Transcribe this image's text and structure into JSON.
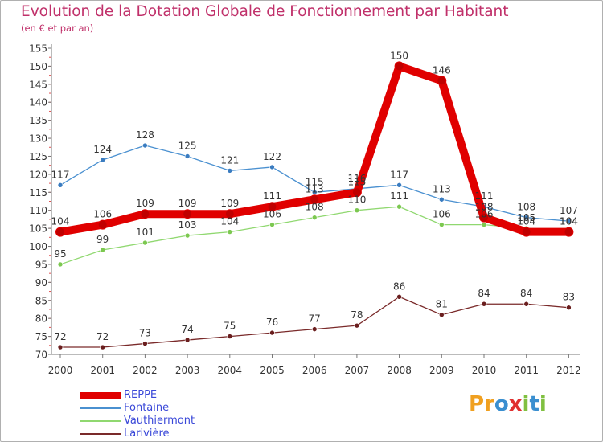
{
  "title": "Evolution de la Dotation Globale de Fonctionnement par Habitant",
  "subtitle": "(en € et par an)",
  "logo": {
    "text": "Proxiti",
    "letters": [
      {
        "ch": "P",
        "color": "#f0a020"
      },
      {
        "ch": "r",
        "color": "#f0a020"
      },
      {
        "ch": "o",
        "color": "#3a8fd0"
      },
      {
        "ch": "x",
        "color": "#e03030"
      },
      {
        "ch": "i",
        "color": "#80c040"
      },
      {
        "ch": "t",
        "color": "#3a8fd0"
      },
      {
        "ch": "i",
        "color": "#80c040"
      }
    ]
  },
  "chart_data": {
    "type": "line",
    "title": "Evolution de la Dotation Globale de Fonctionnement par Habitant",
    "subtitle": "(en € et par an)",
    "x": [
      "2000",
      "2001",
      "2002",
      "2003",
      "2004",
      "2005",
      "2006",
      "2007",
      "2008",
      "2009",
      "2010",
      "2011",
      "2012"
    ],
    "ylim": [
      70,
      155
    ],
    "yticks": [
      70,
      75,
      80,
      85,
      90,
      95,
      100,
      105,
      110,
      115,
      120,
      125,
      130,
      135,
      140,
      145,
      150,
      155
    ],
    "grid": false,
    "legend_position": "bottom-left",
    "series": [
      {
        "name": "REPPE",
        "color": "#e00000",
        "marker_color": "#c00000",
        "values": [
          104,
          106,
          109,
          109,
          109,
          111,
          113,
          115,
          150,
          146,
          108,
          104,
          104
        ]
      },
      {
        "name": "Fontaine",
        "color": "#4a90d0",
        "marker_color": "#3a7cc0",
        "values": [
          117,
          124,
          128,
          125,
          121,
          122,
          115,
          116,
          117,
          113,
          111,
          108,
          107
        ]
      },
      {
        "name": "Vauthiermont",
        "color": "#90d870",
        "marker_color": "#7cc850",
        "values": [
          95,
          99,
          101,
          103,
          104,
          106,
          108,
          110,
          111,
          106,
          106,
          105,
          104
        ]
      },
      {
        "name": "Larivière",
        "color": "#7a2a2a",
        "marker_color": "#6a1e1e",
        "values": [
          72,
          72,
          73,
          74,
          75,
          76,
          77,
          78,
          86,
          81,
          84,
          84,
          83
        ]
      }
    ]
  }
}
